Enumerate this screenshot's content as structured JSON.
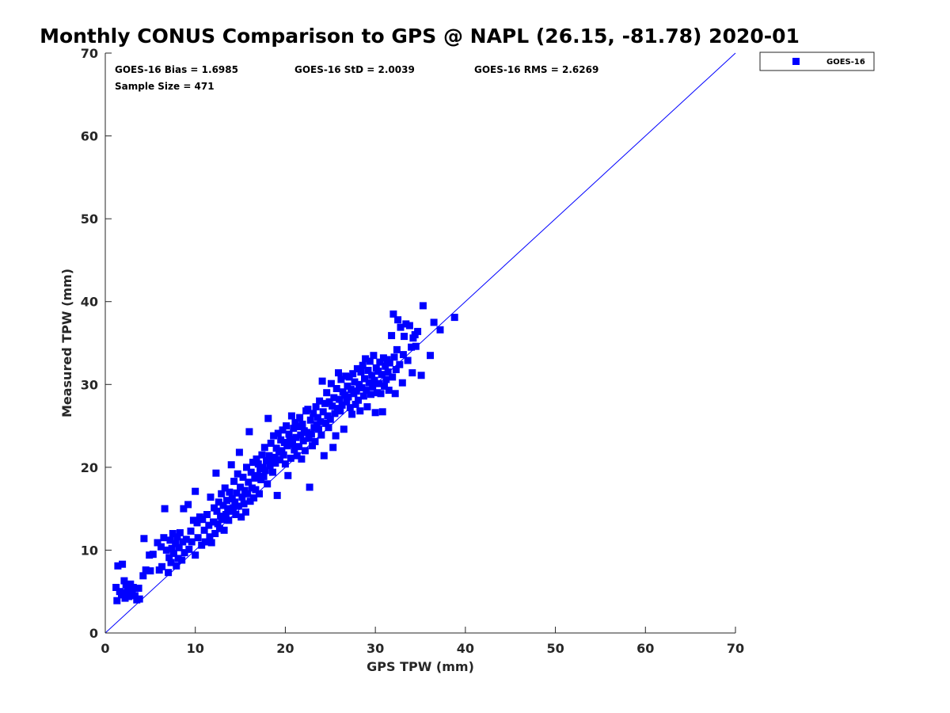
{
  "chart_data": {
    "type": "scatter",
    "title": "Monthly CONUS Comparison to GPS @ NAPL (26.15, -81.78) 2020-01",
    "xlabel": "GPS TPW (mm)",
    "ylabel": "Measured TPW (mm)",
    "xlim": [
      0,
      70
    ],
    "ylim": [
      0,
      70
    ],
    "xticks": [
      "0",
      "10",
      "20",
      "30",
      "40",
      "50",
      "60",
      "70"
    ],
    "yticks": [
      "0",
      "10",
      "20",
      "30",
      "40",
      "50",
      "60",
      "70"
    ],
    "grid": false,
    "legend_position": "outside-top-right",
    "stats": {
      "bias": "GOES-16 Bias = 1.6985",
      "std": "GOES-16 StD = 2.0039",
      "rms": "GOES-16 RMS = 2.6269",
      "sample": "Sample Size = 471"
    },
    "reference_line": {
      "x": [
        0,
        70
      ],
      "y": [
        0,
        70
      ],
      "color": "#0000ff"
    },
    "series": [
      {
        "name": "GOES-16",
        "marker": "square",
        "color": "#0000ff",
        "points": [
          [
            1.2,
            5.5
          ],
          [
            1.3,
            3.9
          ],
          [
            1.4,
            8.1
          ],
          [
            1.6,
            5.0
          ],
          [
            1.8,
            4.6
          ],
          [
            1.9,
            8.3
          ],
          [
            2.0,
            4.9
          ],
          [
            2.1,
            6.3
          ],
          [
            2.2,
            4.2
          ],
          [
            2.3,
            5.8
          ],
          [
            2.5,
            5.2
          ],
          [
            2.6,
            4.4
          ],
          [
            2.8,
            5.9
          ],
          [
            3.0,
            4.8
          ],
          [
            3.1,
            5.5
          ],
          [
            3.3,
            4.5
          ],
          [
            3.5,
            4.0
          ],
          [
            3.7,
            5.4
          ],
          [
            3.8,
            4.1
          ],
          [
            4.2,
            6.9
          ],
          [
            4.3,
            11.4
          ],
          [
            4.5,
            7.6
          ],
          [
            4.9,
            9.4
          ],
          [
            5.0,
            7.5
          ],
          [
            5.3,
            9.5
          ],
          [
            5.8,
            10.9
          ],
          [
            6.0,
            7.6
          ],
          [
            6.2,
            10.4
          ],
          [
            6.3,
            8.0
          ],
          [
            6.5,
            11.5
          ],
          [
            6.6,
            15.0
          ],
          [
            6.8,
            10.0
          ],
          [
            7.0,
            7.3
          ],
          [
            7.1,
            9.1
          ],
          [
            7.2,
            11.2
          ],
          [
            7.3,
            8.5
          ],
          [
            7.4,
            10.2
          ],
          [
            7.5,
            12.0
          ],
          [
            7.6,
            9.6
          ],
          [
            7.8,
            10.8
          ],
          [
            7.9,
            8.1
          ],
          [
            8.0,
            11.6
          ],
          [
            8.1,
            9.0
          ],
          [
            8.2,
            10.3
          ],
          [
            8.3,
            12.1
          ],
          [
            8.5,
            8.8
          ],
          [
            8.6,
            11.0
          ],
          [
            8.7,
            15.0
          ],
          [
            8.8,
            9.7
          ],
          [
            9.0,
            11.3
          ],
          [
            9.2,
            15.5
          ],
          [
            9.3,
            10.1
          ],
          [
            9.5,
            12.3
          ],
          [
            9.6,
            11.0
          ],
          [
            9.8,
            13.6
          ],
          [
            10.0,
            9.4
          ],
          [
            10.0,
            17.1
          ],
          [
            10.2,
            13.3
          ],
          [
            10.3,
            11.5
          ],
          [
            10.5,
            14.0
          ],
          [
            10.7,
            10.6
          ],
          [
            10.8,
            13.7
          ],
          [
            11.0,
            12.4
          ],
          [
            11.1,
            11.0
          ],
          [
            11.3,
            14.3
          ],
          [
            11.5,
            13.0
          ],
          [
            11.6,
            11.6
          ],
          [
            11.7,
            16.4
          ],
          [
            11.8,
            10.9
          ],
          [
            12.0,
            13.4
          ],
          [
            12.1,
            15.1
          ],
          [
            12.2,
            12.0
          ],
          [
            12.3,
            19.3
          ],
          [
            12.4,
            14.7
          ],
          [
            12.5,
            13.2
          ],
          [
            12.6,
            15.8
          ],
          [
            12.7,
            12.6
          ],
          [
            12.8,
            14.1
          ],
          [
            12.9,
            16.8
          ],
          [
            13.0,
            13.7
          ],
          [
            13.1,
            15.4
          ],
          [
            13.2,
            12.4
          ],
          [
            13.3,
            17.5
          ],
          [
            13.4,
            14.3
          ],
          [
            13.5,
            16.0
          ],
          [
            13.6,
            15.0
          ],
          [
            13.7,
            13.6
          ],
          [
            13.8,
            17.0
          ],
          [
            13.9,
            14.7
          ],
          [
            14.0,
            20.3
          ],
          [
            14.1,
            16.2
          ],
          [
            14.2,
            15.1
          ],
          [
            14.3,
            18.3
          ],
          [
            14.4,
            15.8
          ],
          [
            14.5,
            14.3
          ],
          [
            14.6,
            16.9
          ],
          [
            14.7,
            19.2
          ],
          [
            14.8,
            15.3
          ],
          [
            14.9,
            21.8
          ],
          [
            15.0,
            17.6
          ],
          [
            15.1,
            14.0
          ],
          [
            15.2,
            16.4
          ],
          [
            15.3,
            18.8
          ],
          [
            15.4,
            15.6
          ],
          [
            15.5,
            17.2
          ],
          [
            15.6,
            14.6
          ],
          [
            15.7,
            20.0
          ],
          [
            15.8,
            16.8
          ],
          [
            15.9,
            18.2
          ],
          [
            16.0,
            24.3
          ],
          [
            16.1,
            15.9
          ],
          [
            16.2,
            19.4
          ],
          [
            16.3,
            17.5
          ],
          [
            16.4,
            20.6
          ],
          [
            16.5,
            16.3
          ],
          [
            16.6,
            18.7
          ],
          [
            16.7,
            17.3
          ],
          [
            16.8,
            21.0
          ],
          [
            16.9,
            19.0
          ],
          [
            17.0,
            20.4
          ],
          [
            17.1,
            16.8
          ],
          [
            17.2,
            19.8
          ],
          [
            17.3,
            18.5
          ],
          [
            17.4,
            21.5
          ],
          [
            17.5,
            20.0
          ],
          [
            17.6,
            18.9
          ],
          [
            17.7,
            22.4
          ],
          [
            17.8,
            19.6
          ],
          [
            17.9,
            20.8
          ],
          [
            18.0,
            18.0
          ],
          [
            18.1,
            25.9
          ],
          [
            18.2,
            21.4
          ],
          [
            18.3,
            20.2
          ],
          [
            18.4,
            22.9
          ],
          [
            18.5,
            20.7
          ],
          [
            18.6,
            19.4
          ],
          [
            18.7,
            23.8
          ],
          [
            18.8,
            21.2
          ],
          [
            18.9,
            20.5
          ],
          [
            19.0,
            22.3
          ],
          [
            19.1,
            16.6
          ],
          [
            19.2,
            24.1
          ],
          [
            19.3,
            21.8
          ],
          [
            19.4,
            20.9
          ],
          [
            19.5,
            23.3
          ],
          [
            19.6,
            22.0
          ],
          [
            19.7,
            24.5
          ],
          [
            19.8,
            21.5
          ],
          [
            19.9,
            23.0
          ],
          [
            20.0,
            20.4
          ],
          [
            20.1,
            25.0
          ],
          [
            20.2,
            22.6
          ],
          [
            20.3,
            19.0
          ],
          [
            20.4,
            24.0
          ],
          [
            20.5,
            23.4
          ],
          [
            20.6,
            21.1
          ],
          [
            20.7,
            26.2
          ],
          [
            20.8,
            22.8
          ],
          [
            20.9,
            24.7
          ],
          [
            21.0,
            22.1
          ],
          [
            21.1,
            25.4
          ],
          [
            21.2,
            23.6
          ],
          [
            21.3,
            21.4
          ],
          [
            21.4,
            24.9
          ],
          [
            21.5,
            22.5
          ],
          [
            21.6,
            26.0
          ],
          [
            21.7,
            23.9
          ],
          [
            21.8,
            21.0
          ],
          [
            21.9,
            25.2
          ],
          [
            22.0,
            23.2
          ],
          [
            22.1,
            24.4
          ],
          [
            22.2,
            22.0
          ],
          [
            22.3,
            26.8
          ],
          [
            22.4,
            24.2
          ],
          [
            22.5,
            27.0
          ],
          [
            22.6,
            23.5
          ],
          [
            22.7,
            17.6
          ],
          [
            22.8,
            25.7
          ],
          [
            22.9,
            24.0
          ],
          [
            23.0,
            22.6
          ],
          [
            23.1,
            26.5
          ],
          [
            23.2,
            24.8
          ],
          [
            23.3,
            23.1
          ],
          [
            23.4,
            27.3
          ],
          [
            23.5,
            25.1
          ],
          [
            23.6,
            26.0
          ],
          [
            23.7,
            24.6
          ],
          [
            23.8,
            28.0
          ],
          [
            23.9,
            25.5
          ],
          [
            24.0,
            23.9
          ],
          [
            24.1,
            30.4
          ],
          [
            24.2,
            26.7
          ],
          [
            24.3,
            21.4
          ],
          [
            24.4,
            27.7
          ],
          [
            24.5,
            25.3
          ],
          [
            24.6,
            29.0
          ],
          [
            24.7,
            26.2
          ],
          [
            24.8,
            24.8
          ],
          [
            24.9,
            27.9
          ],
          [
            25.0,
            25.8
          ],
          [
            25.1,
            30.1
          ],
          [
            25.2,
            27.4
          ],
          [
            25.3,
            22.4
          ],
          [
            25.4,
            28.4
          ],
          [
            25.5,
            26.5
          ],
          [
            25.6,
            23.8
          ],
          [
            25.7,
            29.5
          ],
          [
            25.8,
            27.1
          ],
          [
            25.9,
            31.4
          ],
          [
            26.0,
            28.2
          ],
          [
            26.1,
            26.8
          ],
          [
            26.2,
            30.6
          ],
          [
            26.3,
            27.5
          ],
          [
            26.4,
            29.1
          ],
          [
            26.5,
            24.6
          ],
          [
            26.6,
            28.7
          ],
          [
            26.7,
            31.0
          ],
          [
            26.8,
            27.9
          ],
          [
            26.9,
            29.8
          ],
          [
            27.0,
            28.5
          ],
          [
            27.1,
            30.9
          ],
          [
            27.2,
            27.2
          ],
          [
            27.3,
            29.4
          ],
          [
            27.4,
            26.4
          ],
          [
            27.5,
            31.3
          ],
          [
            27.6,
            28.9
          ],
          [
            27.7,
            30.3
          ],
          [
            27.8,
            27.6
          ],
          [
            27.9,
            29.2
          ],
          [
            28.0,
            31.9
          ],
          [
            28.1,
            28.1
          ],
          [
            28.2,
            30.0
          ],
          [
            28.3,
            26.8
          ],
          [
            28.4,
            31.5
          ],
          [
            28.5,
            29.6
          ],
          [
            28.6,
            32.3
          ],
          [
            28.7,
            28.6
          ],
          [
            28.8,
            30.7
          ],
          [
            28.9,
            33.1
          ],
          [
            29.0,
            29.3
          ],
          [
            29.1,
            27.3
          ],
          [
            29.2,
            31.7
          ],
          [
            29.3,
            30.2
          ],
          [
            29.4,
            32.8
          ],
          [
            29.5,
            28.8
          ],
          [
            29.6,
            31.1
          ],
          [
            29.7,
            29.7
          ],
          [
            29.8,
            33.5
          ],
          [
            29.9,
            30.5
          ],
          [
            30.0,
            26.6
          ],
          [
            30.1,
            32.0
          ],
          [
            30.2,
            29.0
          ],
          [
            30.3,
            31.6
          ],
          [
            30.4,
            30.1
          ],
          [
            30.5,
            32.7
          ],
          [
            30.6,
            28.9
          ],
          [
            30.7,
            31.2
          ],
          [
            30.8,
            26.7
          ],
          [
            30.9,
            33.2
          ],
          [
            31.0,
            29.8
          ],
          [
            31.1,
            32.2
          ],
          [
            31.2,
            30.6
          ],
          [
            31.3,
            33.0
          ],
          [
            31.4,
            31.5
          ],
          [
            31.5,
            29.3
          ],
          [
            31.6,
            32.6
          ],
          [
            31.8,
            35.9
          ],
          [
            31.9,
            30.9
          ],
          [
            32.0,
            38.5
          ],
          [
            32.1,
            33.3
          ],
          [
            32.2,
            28.9
          ],
          [
            32.3,
            31.8
          ],
          [
            32.4,
            34.2
          ],
          [
            32.5,
            37.8
          ],
          [
            32.7,
            32.4
          ],
          [
            32.8,
            36.9
          ],
          [
            33.0,
            30.2
          ],
          [
            33.1,
            33.6
          ],
          [
            33.2,
            35.8
          ],
          [
            33.4,
            37.3
          ],
          [
            33.6,
            32.9
          ],
          [
            33.8,
            37.1
          ],
          [
            34.0,
            34.5
          ],
          [
            34.1,
            31.4
          ],
          [
            34.2,
            35.6
          ],
          [
            34.4,
            36.0
          ],
          [
            34.5,
            34.6
          ],
          [
            34.7,
            36.4
          ],
          [
            35.1,
            31.1
          ],
          [
            35.3,
            39.5
          ],
          [
            36.1,
            33.5
          ],
          [
            36.5,
            37.5
          ],
          [
            37.2,
            36.6
          ],
          [
            38.8,
            38.1
          ]
        ]
      }
    ]
  }
}
